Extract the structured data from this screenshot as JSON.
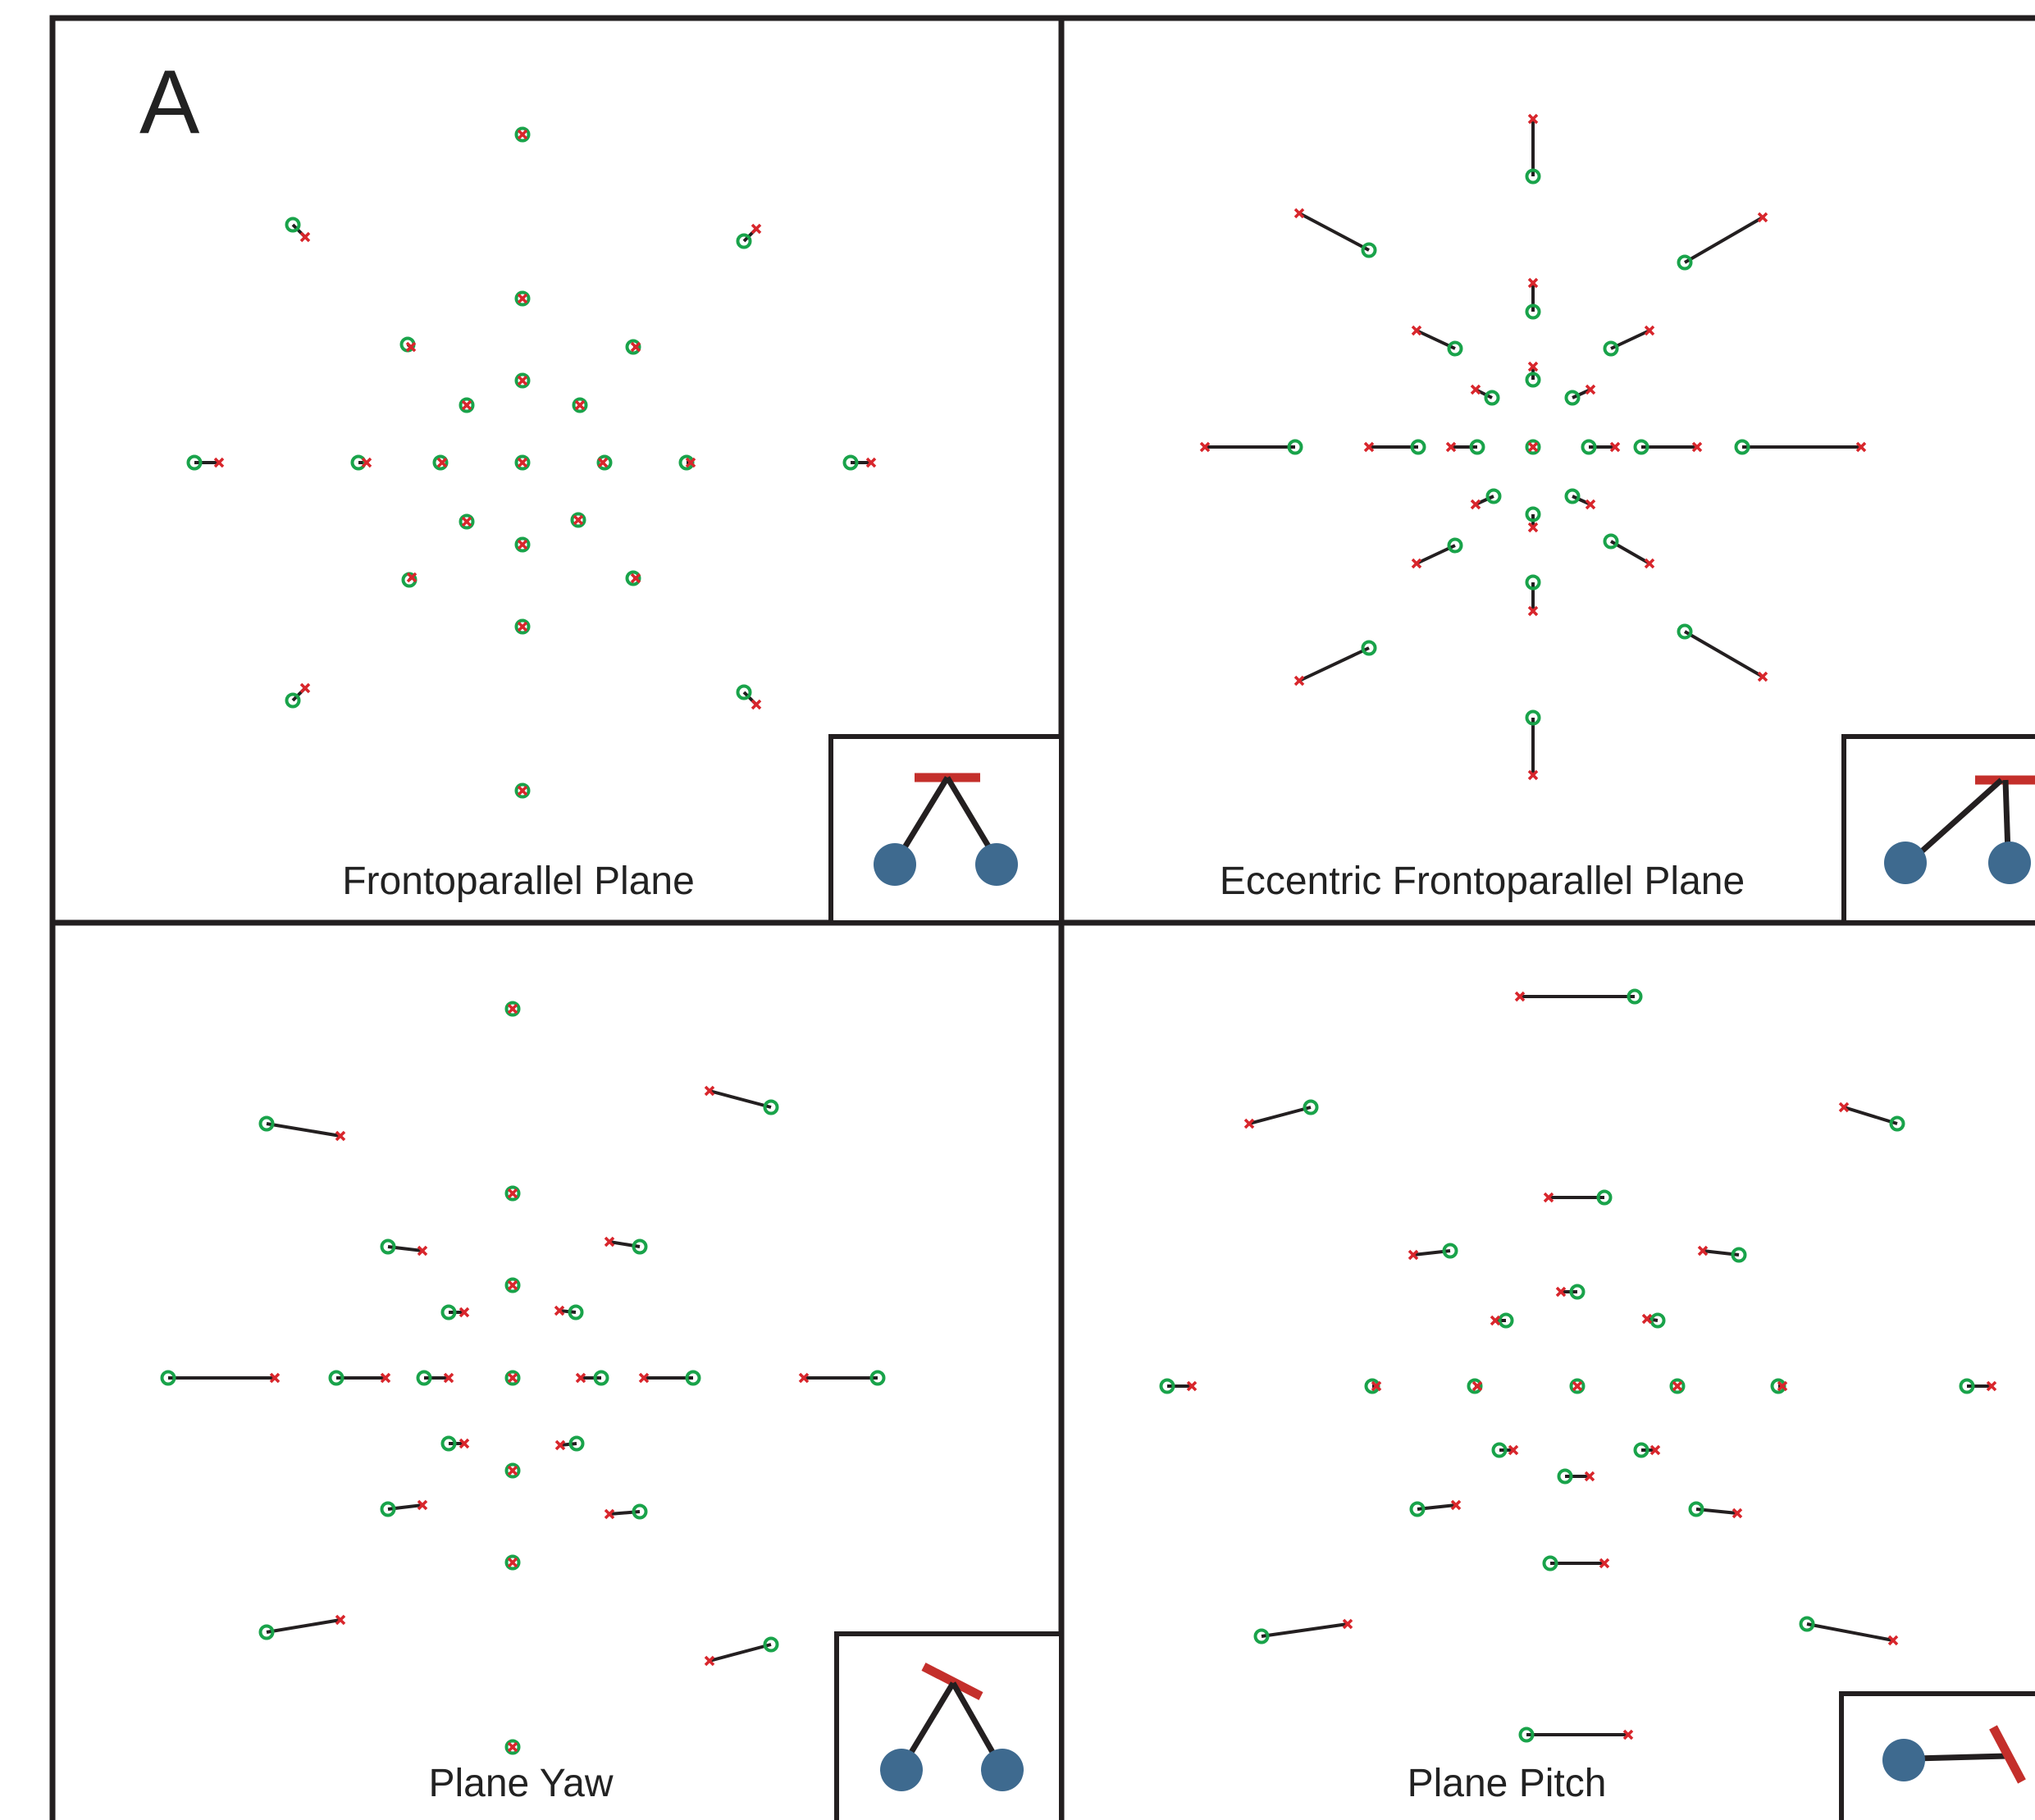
{
  "figure": {
    "letter": "A",
    "colors": {
      "frame": "#231f20",
      "target": "#19a34a",
      "response": "#d8262c",
      "link": "#231f20",
      "eye": "#3e6a8f",
      "plane": "#c42f2b"
    },
    "marker_legend": {
      "target": "green-circle-icon",
      "response": "red-cross-icon",
      "error_link": "black-line"
    },
    "panels": [
      {
        "id": "frontoparallel",
        "title": "Frontoparallel Plane",
        "points": [
          {
            "t": [
              0,
              4
            ],
            "r": [
              0,
              4
            ]
          },
          {
            "t": [
              0,
              2
            ],
            "r": [
              0,
              2
            ]
          },
          {
            "t": [
              0,
              1
            ],
            "r": [
              0,
              1
            ]
          },
          {
            "t": [
              0,
              -1
            ],
            "r": [
              0,
              -1
            ]
          },
          {
            "t": [
              0,
              -2
            ],
            "r": [
              0,
              -2
            ]
          },
          {
            "t": [
              0,
              -4
            ],
            "r": [
              0,
              -4
            ]
          },
          {
            "t": [
              -4,
              0
            ],
            "r": [
              -3.7,
              0
            ]
          },
          {
            "t": [
              -2,
              0
            ],
            "r": [
              -1.9,
              0
            ]
          },
          {
            "t": [
              -1,
              0
            ],
            "r": [
              -0.98,
              0
            ]
          },
          {
            "t": [
              0,
              0
            ],
            "r": [
              0,
              0
            ]
          },
          {
            "t": [
              1,
              0
            ],
            "r": [
              0.98,
              0
            ]
          },
          {
            "t": [
              2,
              0
            ],
            "r": [
              2.05,
              0
            ]
          },
          {
            "t": [
              4,
              0
            ],
            "r": [
              4.25,
              0
            ]
          },
          {
            "t": [
              -2.8,
              2.9
            ],
            "r": [
              -2.65,
              2.75
            ]
          },
          {
            "t": [
              2.7,
              2.7
            ],
            "r": [
              2.85,
              2.85
            ]
          },
          {
            "t": [
              -1.4,
              1.44
            ],
            "r": [
              -1.36,
              1.41
            ]
          },
          {
            "t": [
              1.35,
              1.41
            ],
            "r": [
              1.38,
              1.41
            ]
          },
          {
            "t": [
              -0.68,
              0.7
            ],
            "r": [
              -0.68,
              0.7
            ]
          },
          {
            "t": [
              0.7,
              0.7
            ],
            "r": [
              0.7,
              0.7
            ]
          },
          {
            "t": [
              -0.68,
              -0.72
            ],
            "r": [
              -0.68,
              -0.72
            ]
          },
          {
            "t": [
              0.68,
              -0.7
            ],
            "r": [
              0.68,
              -0.7
            ]
          },
          {
            "t": [
              -1.38,
              -1.43
            ],
            "r": [
              -1.35,
              -1.4
            ]
          },
          {
            "t": [
              1.35,
              -1.41
            ],
            "r": [
              1.38,
              -1.41
            ]
          },
          {
            "t": [
              -2.8,
              -2.9
            ],
            "r": [
              -2.65,
              -2.75
            ]
          },
          {
            "t": [
              2.7,
              -2.8
            ],
            "r": [
              2.85,
              -2.95
            ]
          }
        ]
      },
      {
        "id": "eccentric",
        "title": "Eccentric Frontoparallel Plane",
        "points": [
          {
            "t": [
              0,
              3.3
            ],
            "r": [
              0,
              4.0
            ]
          },
          {
            "t": [
              0,
              1.65
            ],
            "r": [
              0,
              2.0
            ]
          },
          {
            "t": [
              0,
              0.82
            ],
            "r": [
              0,
              0.98
            ]
          },
          {
            "t": [
              0,
              0
            ],
            "r": [
              0,
              0
            ]
          },
          {
            "t": [
              0,
              -0.82
            ],
            "r": [
              0,
              -0.98
            ]
          },
          {
            "t": [
              0,
              -1.65
            ],
            "r": [
              0,
              -2.0
            ]
          },
          {
            "t": [
              0,
              -3.3
            ],
            "r": [
              0,
              -4.0
            ]
          },
          {
            "t": [
              -2.9,
              0
            ],
            "r": [
              -4.0,
              0
            ]
          },
          {
            "t": [
              -1.4,
              0
            ],
            "r": [
              -2.0,
              0
            ]
          },
          {
            "t": [
              -0.68,
              0
            ],
            "r": [
              -1.0,
              0
            ]
          },
          {
            "t": [
              0.68,
              0
            ],
            "r": [
              1.0,
              0
            ]
          },
          {
            "t": [
              1.32,
              0
            ],
            "r": [
              2.0,
              0
            ]
          },
          {
            "t": [
              2.55,
              0
            ],
            "r": [
              4.0,
              0
            ]
          },
          {
            "t": [
              -2.0,
              2.4
            ],
            "r": [
              -2.85,
              2.85
            ]
          },
          {
            "t": [
              1.85,
              2.25
            ],
            "r": [
              2.8,
              2.8
            ]
          },
          {
            "t": [
              -0.95,
              1.2
            ],
            "r": [
              -1.42,
              1.42
            ]
          },
          {
            "t": [
              0.95,
              1.2
            ],
            "r": [
              1.42,
              1.42
            ]
          },
          {
            "t": [
              -0.5,
              0.6
            ],
            "r": [
              -0.7,
              0.7
            ]
          },
          {
            "t": [
              0.48,
              0.6
            ],
            "r": [
              0.7,
              0.7
            ]
          },
          {
            "t": [
              -0.48,
              -0.6
            ],
            "r": [
              -0.7,
              -0.7
            ]
          },
          {
            "t": [
              0.48,
              -0.6
            ],
            "r": [
              0.7,
              -0.7
            ]
          },
          {
            "t": [
              -0.95,
              -1.2
            ],
            "r": [
              -1.42,
              -1.42
            ]
          },
          {
            "t": [
              0.95,
              -1.15
            ],
            "r": [
              1.42,
              -1.42
            ]
          },
          {
            "t": [
              -2.0,
              -2.45
            ],
            "r": [
              -2.85,
              -2.85
            ]
          },
          {
            "t": [
              1.85,
              -2.25
            ],
            "r": [
              2.8,
              -2.8
            ]
          }
        ]
      },
      {
        "id": "yaw",
        "title": "Plane Yaw",
        "points": [
          {
            "t": [
              0,
              4.5
            ],
            "r": [
              0,
              4.5
            ]
          },
          {
            "t": [
              0,
              2.25
            ],
            "r": [
              0,
              2.25
            ]
          },
          {
            "t": [
              0,
              1.13
            ],
            "r": [
              0,
              1.13
            ]
          },
          {
            "t": [
              0,
              0
            ],
            "r": [
              0,
              0
            ]
          },
          {
            "t": [
              0,
              -1.13
            ],
            "r": [
              0,
              -1.13
            ]
          },
          {
            "t": [
              0,
              -2.25
            ],
            "r": [
              0,
              -2.25
            ]
          },
          {
            "t": [
              0,
              -4.5
            ],
            "r": [
              0,
              -4.5
            ]
          },
          {
            "t": [
              -4.2,
              0
            ],
            "r": [
              -2.9,
              0
            ]
          },
          {
            "t": [
              -2.15,
              0
            ],
            "r": [
              -1.55,
              0
            ]
          },
          {
            "t": [
              -1.08,
              0
            ],
            "r": [
              -0.78,
              0
            ]
          },
          {
            "t": [
              1.08,
              0
            ],
            "r": [
              0.83,
              0
            ]
          },
          {
            "t": [
              2.2,
              0
            ],
            "r": [
              1.6,
              0
            ]
          },
          {
            "t": [
              4.45,
              0
            ],
            "r": [
              3.55,
              0
            ]
          },
          {
            "t": [
              -3.0,
              3.1
            ],
            "r": [
              -2.1,
              2.95
            ]
          },
          {
            "t": [
              3.15,
              3.3
            ],
            "r": [
              2.4,
              3.5
            ]
          },
          {
            "t": [
              -1.52,
              1.6
            ],
            "r": [
              -1.1,
              1.55
            ]
          },
          {
            "t": [
              1.55,
              1.6
            ],
            "r": [
              1.18,
              1.66
            ]
          },
          {
            "t": [
              -0.78,
              0.8
            ],
            "r": [
              -0.59,
              0.8
            ]
          },
          {
            "t": [
              0.77,
              0.8
            ],
            "r": [
              0.57,
              0.82
            ]
          },
          {
            "t": [
              -0.78,
              -0.8
            ],
            "r": [
              -0.59,
              -0.8
            ]
          },
          {
            "t": [
              0.78,
              -0.8
            ],
            "r": [
              0.58,
              -0.82
            ]
          },
          {
            "t": [
              -1.52,
              -1.6
            ],
            "r": [
              -1.1,
              -1.55
            ]
          },
          {
            "t": [
              1.55,
              -1.63
            ],
            "r": [
              1.18,
              -1.66
            ]
          },
          {
            "t": [
              -3.0,
              -3.1
            ],
            "r": [
              -2.1,
              -2.95
            ]
          },
          {
            "t": [
              3.15,
              -3.25
            ],
            "r": [
              2.4,
              -3.45
            ]
          }
        ]
      },
      {
        "id": "pitch",
        "title": "Plane Pitch",
        "points": [
          {
            "t": [
              0.7,
              4.75
            ],
            "r": [
              -0.7,
              4.75
            ]
          },
          {
            "t": [
              0.33,
              2.3
            ],
            "r": [
              -0.35,
              2.3
            ]
          },
          {
            "t": [
              0,
              1.15
            ],
            "r": [
              -0.2,
              1.15
            ]
          },
          {
            "t": [
              0,
              0
            ],
            "r": [
              0,
              0
            ]
          },
          {
            "t": [
              -0.15,
              -1.1
            ],
            "r": [
              0.15,
              -1.1
            ]
          },
          {
            "t": [
              -0.33,
              -2.16
            ],
            "r": [
              0.33,
              -2.16
            ]
          },
          {
            "t": [
              -0.62,
              -4.25
            ],
            "r": [
              0.62,
              -4.25
            ]
          },
          {
            "t": [
              -5.0,
              0
            ],
            "r": [
              -4.7,
              0
            ]
          },
          {
            "t": [
              -2.5,
              0
            ],
            "r": [
              -2.45,
              0
            ]
          },
          {
            "t": [
              -1.25,
              0
            ],
            "r": [
              -1.22,
              0
            ]
          },
          {
            "t": [
              1.22,
              0
            ],
            "r": [
              1.22,
              0
            ]
          },
          {
            "t": [
              2.45,
              0
            ],
            "r": [
              2.5,
              0
            ]
          },
          {
            "t": [
              4.75,
              0
            ],
            "r": [
              5.05,
              0
            ]
          },
          {
            "t": [
              -3.25,
              3.4
            ],
            "r": [
              -4.0,
              3.2
            ]
          },
          {
            "t": [
              3.9,
              3.2
            ],
            "r": [
              3.25,
              3.4
            ]
          },
          {
            "t": [
              -1.55,
              1.65
            ],
            "r": [
              -2.0,
              1.6
            ]
          },
          {
            "t": [
              1.97,
              1.6
            ],
            "r": [
              1.53,
              1.65
            ]
          },
          {
            "t": [
              -0.87,
              0.8
            ],
            "r": [
              -1.0,
              0.8
            ]
          },
          {
            "t": [
              0.98,
              0.8
            ],
            "r": [
              0.85,
              0.82
            ]
          },
          {
            "t": [
              -0.95,
              -0.78
            ],
            "r": [
              -0.78,
              -0.78
            ]
          },
          {
            "t": [
              0.78,
              -0.78
            ],
            "r": [
              0.95,
              -0.78
            ]
          },
          {
            "t": [
              -1.95,
              -1.5
            ],
            "r": [
              -1.48,
              -1.45
            ]
          },
          {
            "t": [
              1.45,
              -1.5
            ],
            "r": [
              1.95,
              -1.55
            ]
          },
          {
            "t": [
              -3.85,
              -3.05
            ],
            "r": [
              -2.8,
              -2.9
            ]
          },
          {
            "t": [
              2.8,
              -2.9
            ],
            "r": [
              3.85,
              -3.1
            ]
          }
        ]
      }
    ]
  }
}
